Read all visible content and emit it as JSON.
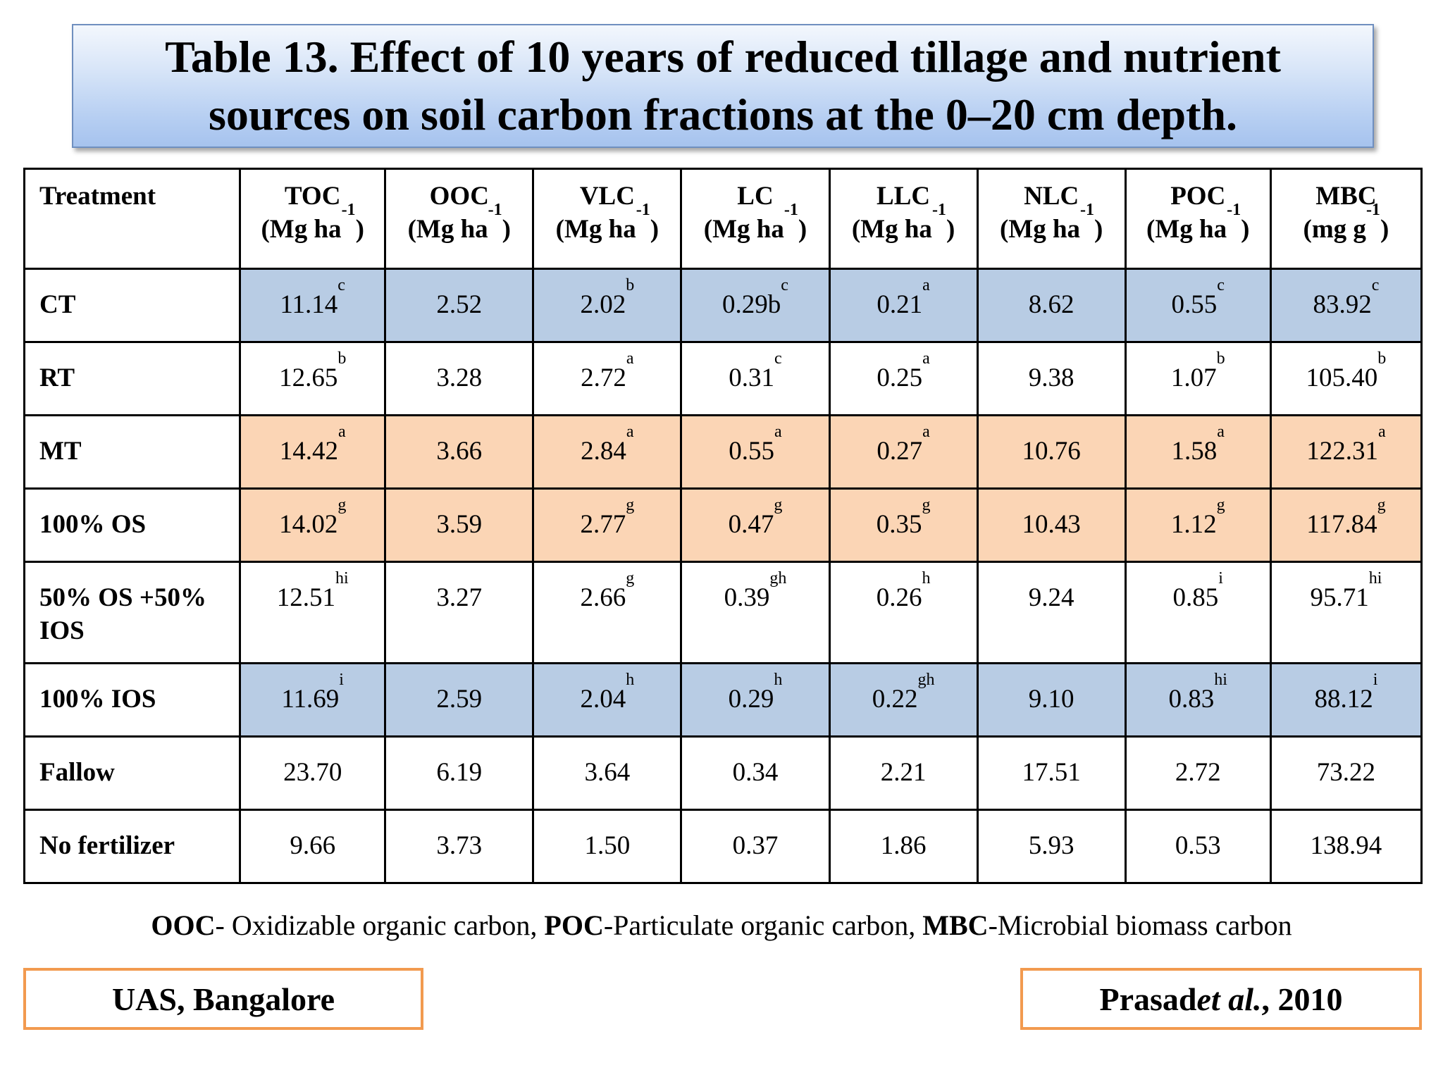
{
  "title": {
    "line1": "Table 13. Effect of 10 years of reduced tillage and nutrient",
    "line2": "sources on soil carbon fractions at the 0–20 cm depth."
  },
  "table": {
    "treatment_header": "Treatment",
    "columns": [
      {
        "name": "TOC",
        "unit_pre": "(Mg ha",
        "unit_exp": "-1",
        "unit_post": ")"
      },
      {
        "name": "OOC",
        "unit_pre": "(Mg ha",
        "unit_exp": "-1",
        "unit_post": ")"
      },
      {
        "name": "VLC",
        "unit_pre": "(Mg ha",
        "unit_exp": "-1",
        "unit_post": ")"
      },
      {
        "name": "LC",
        "unit_pre": "(Mg ha",
        "unit_exp": "-1",
        "unit_post": ")"
      },
      {
        "name": "LLC",
        "unit_pre": "(Mg ha",
        "unit_exp": "-1",
        "unit_post": ")"
      },
      {
        "name": "NLC",
        "unit_pre": "(Mg ha",
        "unit_exp": "-1",
        "unit_post": ")"
      },
      {
        "name": "POC",
        "unit_pre": "(Mg ha",
        "unit_exp": "-1",
        "unit_post": ")"
      },
      {
        "name": "MBC",
        "unit_pre": "(mg g",
        "unit_exp": "-1",
        "unit_post": ")"
      }
    ],
    "highlight_colors": {
      "blue": "#b8cce4",
      "peach": "#fbd5b5"
    },
    "rows": [
      {
        "treatment": [
          "CT"
        ],
        "highlight": "blue",
        "cells": [
          {
            "v": "11.14",
            "s": "c"
          },
          {
            "v": "2.52",
            "s": ""
          },
          {
            "v": "2.02",
            "s": "b"
          },
          {
            "v": "0.29b",
            "s": "c"
          },
          {
            "v": "0.21",
            "s": "a"
          },
          {
            "v": "8.62",
            "s": ""
          },
          {
            "v": "0.55",
            "s": "c"
          },
          {
            "v": "83.92",
            "s": "c"
          }
        ]
      },
      {
        "treatment": [
          "RT"
        ],
        "highlight": "",
        "cells": [
          {
            "v": "12.65",
            "s": "b"
          },
          {
            "v": "3.28",
            "s": ""
          },
          {
            "v": "2.72",
            "s": "a"
          },
          {
            "v": "0.31",
            "s": "c"
          },
          {
            "v": "0.25",
            "s": "a"
          },
          {
            "v": "9.38",
            "s": ""
          },
          {
            "v": "1.07",
            "s": "b"
          },
          {
            "v": "105.40",
            "s": "b"
          }
        ]
      },
      {
        "treatment": [
          "MT"
        ],
        "highlight": "peach",
        "cells": [
          {
            "v": "14.42",
            "s": "a"
          },
          {
            "v": "3.66",
            "s": ""
          },
          {
            "v": "2.84",
            "s": "a"
          },
          {
            "v": "0.55",
            "s": "a"
          },
          {
            "v": "0.27",
            "s": "a"
          },
          {
            "v": "10.76",
            "s": ""
          },
          {
            "v": "1.58",
            "s": "a"
          },
          {
            "v": "122.31",
            "s": "a"
          }
        ]
      },
      {
        "treatment": [
          "100% OS"
        ],
        "highlight": "peach",
        "cells": [
          {
            "v": "14.02",
            "s": "g"
          },
          {
            "v": "3.59",
            "s": ""
          },
          {
            "v": "2.77",
            "s": "g"
          },
          {
            "v": "0.47",
            "s": "g"
          },
          {
            "v": "0.35",
            "s": "g"
          },
          {
            "v": "10.43",
            "s": ""
          },
          {
            "v": "1.12",
            "s": "g"
          },
          {
            "v": "117.84",
            "s": "g"
          }
        ]
      },
      {
        "treatment": [
          "50% OS +50%",
          "IOS"
        ],
        "highlight": "",
        "cells": [
          {
            "v": "12.51",
            "s": "hi"
          },
          {
            "v": "3.27",
            "s": ""
          },
          {
            "v": "2.66",
            "s": "g"
          },
          {
            "v": "0.39",
            "s": "gh"
          },
          {
            "v": "0.26",
            "s": "h"
          },
          {
            "v": "9.24",
            "s": ""
          },
          {
            "v": "0.85",
            "s": "i"
          },
          {
            "v": "95.71",
            "s": "hi"
          }
        ]
      },
      {
        "treatment": [
          "100% IOS"
        ],
        "highlight": "blue",
        "cells": [
          {
            "v": "11.69",
            "s": "i"
          },
          {
            "v": "2.59",
            "s": ""
          },
          {
            "v": "2.04",
            "s": "h"
          },
          {
            "v": "0.29",
            "s": "h"
          },
          {
            "v": "0.22",
            "s": "gh"
          },
          {
            "v": "9.10",
            "s": ""
          },
          {
            "v": "0.83",
            "s": "hi"
          },
          {
            "v": "88.12",
            "s": "i"
          }
        ]
      },
      {
        "treatment": [
          "Fallow"
        ],
        "highlight": "",
        "cells": [
          {
            "v": "23.70",
            "s": ""
          },
          {
            "v": "6.19",
            "s": ""
          },
          {
            "v": "3.64",
            "s": ""
          },
          {
            "v": "0.34",
            "s": ""
          },
          {
            "v": "2.21",
            "s": ""
          },
          {
            "v": "17.51",
            "s": ""
          },
          {
            "v": "2.72",
            "s": ""
          },
          {
            "v": "73.22",
            "s": ""
          }
        ]
      },
      {
        "treatment": [
          "No fertilizer"
        ],
        "highlight": "",
        "cells": [
          {
            "v": "9.66",
            "s": ""
          },
          {
            "v": "3.73",
            "s": ""
          },
          {
            "v": "1.50",
            "s": ""
          },
          {
            "v": "0.37",
            "s": ""
          },
          {
            "v": "1.86",
            "s": ""
          },
          {
            "v": "5.93",
            "s": ""
          },
          {
            "v": "0.53",
            "s": ""
          },
          {
            "v": "138.94",
            "s": ""
          }
        ]
      }
    ]
  },
  "footnote": {
    "ooc_abbr": "OOC",
    "ooc_text": "- Oxidizable organic carbon, ",
    "poc_abbr": "POC",
    "poc_text": "-Particulate organic carbon, ",
    "mbc_abbr": "MBC",
    "mbc_text": "-Microbial biomass carbon"
  },
  "source_left": "UAS, Bangalore",
  "source_right": {
    "author": "Prasad ",
    "etal": "et al.",
    "year": ", 2010"
  }
}
